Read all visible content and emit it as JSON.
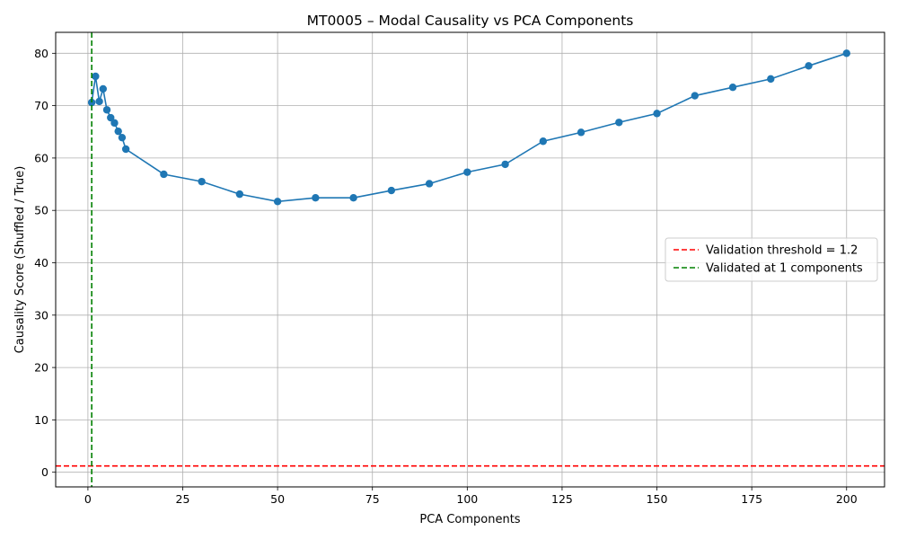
{
  "chart_data": {
    "type": "line",
    "title": "MT0005 – Modal Causality vs PCA Components",
    "xlabel": "PCA Components",
    "ylabel": "Causality Score (Shuffled / True)",
    "xlim": [
      -8.5,
      210
    ],
    "ylim": [
      -2.8,
      84
    ],
    "xticks": [
      0,
      25,
      50,
      75,
      100,
      125,
      150,
      175,
      200
    ],
    "yticks": [
      0,
      10,
      20,
      30,
      40,
      50,
      60,
      70,
      80
    ],
    "grid": true,
    "legend_position": "center-right",
    "series": [
      {
        "color": "#1f77b4",
        "marker": "circle",
        "x": [
          1,
          2,
          3,
          4,
          5,
          6,
          7,
          8,
          9,
          10,
          20,
          30,
          40,
          50,
          60,
          70,
          80,
          90,
          100,
          110,
          120,
          130,
          140,
          150,
          160,
          170,
          180,
          190,
          200
        ],
        "y": [
          70.6,
          75.6,
          70.8,
          73.2,
          69.2,
          67.7,
          66.7,
          65.1,
          63.9,
          61.7,
          56.9,
          55.5,
          53.1,
          51.7,
          52.4,
          52.4,
          53.8,
          55.1,
          57.3,
          58.8,
          63.2,
          64.9,
          66.8,
          68.5,
          71.9,
          73.5,
          75.1,
          77.6,
          80.0
        ]
      }
    ],
    "reference_lines": [
      {
        "orientation": "horizontal",
        "value": 1.2,
        "color": "#ff0000",
        "label": "Validation threshold = 1.2"
      },
      {
        "orientation": "vertical",
        "value": 1,
        "color": "#008000",
        "label": "Validated at 1 components"
      }
    ]
  }
}
